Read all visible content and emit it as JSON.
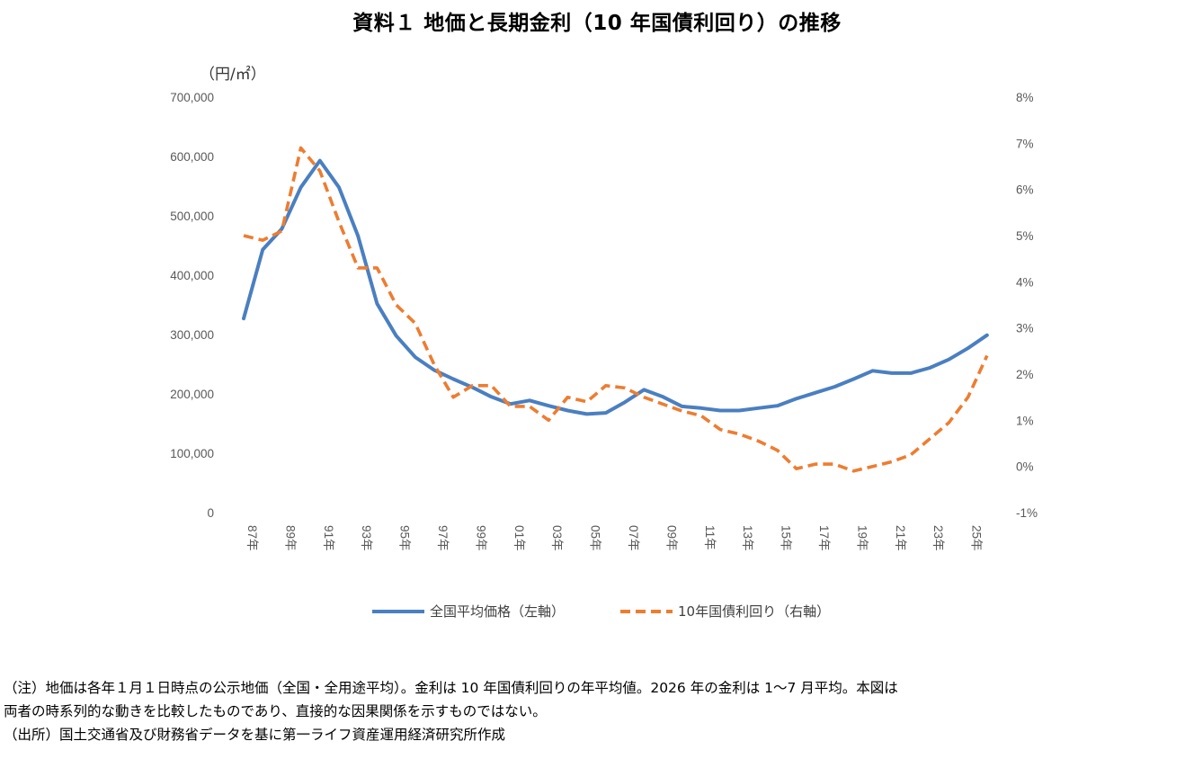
{
  "chart_data": {
    "type": "line",
    "title": "資料１ 地価と長期金利（10 年国債利回り）の推移",
    "y_left_unit": "（円/㎡）",
    "y_left": {
      "min": 0,
      "max": 700000,
      "step": 100000,
      "tick_labels": [
        "0",
        "100,000",
        "200,000",
        "300,000",
        "400,000",
        "500,000",
        "600,000",
        "700,000"
      ]
    },
    "y_right": {
      "min": -1,
      "max": 8,
      "step": 1,
      "tick_labels": [
        "-1%",
        "0%",
        "1%",
        "2%",
        "3%",
        "4%",
        "5%",
        "6%",
        "7%",
        "8%"
      ]
    },
    "x_years": [
      1987,
      1988,
      1989,
      1990,
      1991,
      1992,
      1993,
      1994,
      1995,
      1996,
      1997,
      1998,
      1999,
      2000,
      2001,
      2002,
      2003,
      2004,
      2005,
      2006,
      2007,
      2008,
      2009,
      2010,
      2011,
      2012,
      2013,
      2014,
      2015,
      2016,
      2017,
      2018,
      2019,
      2020,
      2021,
      2022,
      2023,
      2024,
      2025,
      2026
    ],
    "x_tick_labels": [
      "87年",
      "89年",
      "91年",
      "93年",
      "95年",
      "97年",
      "99年",
      "01年",
      "03年",
      "05年",
      "07年",
      "09年",
      "11年",
      "13年",
      "15年",
      "17年",
      "19年",
      "21年",
      "23年",
      "25年"
    ],
    "grid": false,
    "legend_position": "bottom",
    "series": [
      {
        "name": "全国平均価格（左軸）",
        "axis": "left",
        "color": "#4a7fc1",
        "style": "solid",
        "values": [
          327000,
          443000,
          478000,
          548000,
          593000,
          548000,
          466000,
          352000,
          298000,
          262000,
          240000,
          225000,
          211000,
          195000,
          183000,
          189000,
          180000,
          172000,
          166000,
          168000,
          186000,
          207000,
          195000,
          179000,
          176000,
          172000,
          172000,
          176000,
          180000,
          192000,
          202000,
          212000,
          225000,
          239000,
          235000,
          235000,
          244000,
          258000,
          277000,
          299000
        ]
      },
      {
        "name": "10年国債利回り（右軸）",
        "axis": "right",
        "color": "#ed7d31",
        "style": "dashed",
        "values": [
          5.0,
          4.9,
          5.1,
          6.9,
          6.4,
          5.3,
          4.3,
          4.3,
          3.5,
          3.1,
          2.2,
          1.5,
          1.75,
          1.75,
          1.3,
          1.3,
          1.0,
          1.5,
          1.4,
          1.75,
          1.7,
          1.5,
          1.35,
          1.2,
          1.1,
          0.8,
          0.7,
          0.55,
          0.35,
          -0.05,
          0.05,
          0.05,
          -0.1,
          0.0,
          0.1,
          0.25,
          0.6,
          0.95,
          1.5,
          2.4
        ]
      }
    ]
  },
  "notes": [
    "（注）地価は各年１月１日時点の公示地価（全国・全用途平均）。金利は 10 年国債利回りの年平均値。2026 年の金利は 1～7 月平均。本図は",
    "両者の時系列的な動きを比較したものであり、直接的な因果関係を示すものではない。",
    "（出所）国土交通省及び財務省データを基に第一ライフ資産運用経済研究所作成"
  ]
}
